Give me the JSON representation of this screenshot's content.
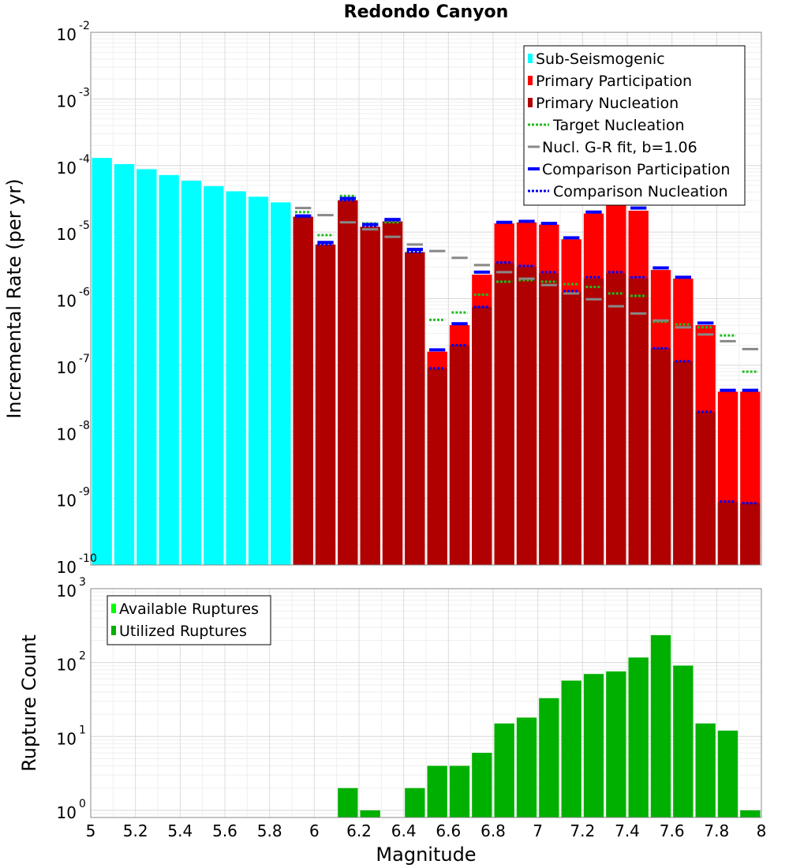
{
  "chart_data": {
    "title": "Redondo Canyon",
    "xlabel": "Magnitude",
    "x_ticks": [
      "5",
      "5.2",
      "5.4",
      "5.6",
      "5.8",
      "6",
      "6.2",
      "6.4",
      "6.6",
      "6.8",
      "7",
      "7.2",
      "7.4",
      "7.6",
      "7.8",
      "8"
    ],
    "xlim": [
      5,
      8
    ],
    "bin_width": 0.1,
    "panels": [
      {
        "type": "bar",
        "scale": "log",
        "ylabel": "Incremental Rate (per yr)",
        "ylim": [
          1e-10,
          0.01
        ],
        "y_ticks": [
          {
            "base": "10",
            "exp": "-10"
          },
          {
            "base": "10",
            "exp": "-9"
          },
          {
            "base": "10",
            "exp": "-8"
          },
          {
            "base": "10",
            "exp": "-7"
          },
          {
            "base": "10",
            "exp": "-6"
          },
          {
            "base": "10",
            "exp": "-5"
          },
          {
            "base": "10",
            "exp": "-4"
          },
          {
            "base": "10",
            "exp": "-3"
          },
          {
            "base": "10",
            "exp": "-2"
          }
        ],
        "legend": [
          {
            "label": "Sub-Seismogenic",
            "style": "bar",
            "color": "#00ffff"
          },
          {
            "label": "Primary Participation",
            "style": "bar",
            "color": "#ff0000"
          },
          {
            "label": "Primary Nucleation",
            "style": "bar",
            "color": "#b00000"
          },
          {
            "label": "Target Nucleation",
            "style": "dotted",
            "color": "#22bb22"
          },
          {
            "label": "Nucl. G-R fit, b=1.06",
            "style": "solid",
            "color": "#888888"
          },
          {
            "label": "Comparison Participation",
            "style": "solid",
            "color": "#0000ff"
          },
          {
            "label": "Comparison Nucleation",
            "style": "dotted",
            "color": "#0000ee"
          }
        ],
        "series": [
          {
            "name": "Sub-Seismogenic",
            "color": "#00ffff",
            "x": [
              5.05,
              5.15,
              5.25,
              5.35,
              5.45,
              5.55,
              5.65,
              5.75,
              5.85
            ],
            "values": [
              0.00013,
              0.000105,
              8.8e-05,
              7.2e-05,
              5.9e-05,
              4.9e-05,
              4.1e-05,
              3.4e-05,
              2.8e-05
            ]
          },
          {
            "name": "Primary Participation",
            "color": "#ff0000",
            "x": [
              5.95,
              6.05,
              6.15,
              6.25,
              6.35,
              6.45,
              6.55,
              6.65,
              6.75,
              6.85,
              6.95,
              7.05,
              7.15,
              7.25,
              7.35,
              7.45,
              7.55,
              7.65,
              7.75,
              7.85,
              7.95
            ],
            "values": [
              1.7e-05,
              6.5e-06,
              3e-05,
              1.2e-05,
              1.45e-05,
              5e-06,
              1.6e-07,
              4e-07,
              2.3e-06,
              1.35e-05,
              1.4e-05,
              1.3e-05,
              7.8e-06,
              1.9e-05,
              2.6e-05,
              2.1e-05,
              2.7e-06,
              2e-06,
              4e-07,
              4e-08,
              4e-08
            ]
          },
          {
            "name": "Primary Nucleation",
            "color": "#b00000",
            "x": [
              5.95,
              6.05,
              6.15,
              6.25,
              6.35,
              6.45,
              6.55,
              6.65,
              6.75,
              6.85,
              6.95,
              7.05,
              7.15,
              7.25,
              7.35,
              7.45,
              7.55,
              7.65,
              7.75,
              7.85,
              7.95
            ],
            "values": [
              1.7e-05,
              6.5e-06,
              3e-05,
              1.2e-05,
              1.45e-05,
              5e-06,
              9e-08,
              2e-07,
              7.5e-07,
              3.4e-06,
              3e-06,
              2.4e-06,
              1.25e-06,
              2e-06,
              2.4e-06,
              2e-06,
              1.8e-07,
              1.15e-07,
              2e-08,
              8.8e-10,
              8.5e-10
            ]
          },
          {
            "name": "Target Nucleation",
            "color": "#22bb22",
            "x": [
              5.95,
              6.05,
              6.15,
              6.25,
              6.35,
              6.45,
              6.55,
              6.65,
              6.75,
              6.85,
              6.95,
              7.05,
              7.15,
              7.25,
              7.35,
              7.45,
              7.55,
              7.65,
              7.75,
              7.85,
              7.95
            ],
            "values": [
              2e-05,
              9e-06,
              3.5e-05,
              1.35e-05,
              1.4e-05,
              5e-06,
              4.8e-07,
              6.2e-07,
              1.15e-06,
              1.8e-06,
              1.9e-06,
              1.8e-06,
              1.65e-06,
              1.5e-06,
              1.2e-06,
              1.1e-06,
              4.5e-07,
              4.1e-07,
              3.7e-07,
              2.8e-07,
              8e-08
            ]
          },
          {
            "name": "Nucl. G-R fit, b=1.06",
            "color": "#888888",
            "x": [
              5.95,
              6.05,
              6.15,
              6.25,
              6.35,
              6.45,
              6.55,
              6.65,
              6.75,
              6.85,
              6.95,
              7.05,
              7.15,
              7.25,
              7.35,
              7.45,
              7.55,
              7.65,
              7.75,
              7.85,
              7.95
            ],
            "values": [
              2.3e-05,
              1.8e-05,
              1.4e-05,
              1.1e-05,
              8.5e-06,
              6.5e-06,
              5.2e-06,
              4.1e-06,
              3.2e-06,
              2.5e-06,
              2e-06,
              1.6e-06,
              1.2e-06,
              9.8e-07,
              7.7e-07,
              6e-07,
              4.7e-07,
              3.7e-07,
              2.9e-07,
              2.3e-07,
              1.75e-07
            ]
          },
          {
            "name": "Comparison Participation",
            "color": "#0000ff",
            "x": [
              5.95,
              6.05,
              6.15,
              6.25,
              6.35,
              6.45,
              6.55,
              6.65,
              6.75,
              6.85,
              6.95,
              7.05,
              7.15,
              7.25,
              7.35,
              7.45,
              7.55,
              7.65,
              7.75,
              7.85,
              7.95
            ],
            "values": [
              1.75e-05,
              7e-06,
              3.2e-05,
              1.3e-05,
              1.55e-05,
              5.5e-06,
              1.7e-07,
              4.2e-07,
              2.5e-06,
              1.4e-05,
              1.45e-05,
              1.35e-05,
              8.2e-06,
              2e-05,
              2.7e-05,
              2.3e-05,
              2.9e-06,
              2.1e-06,
              4.3e-07,
              4.2e-08,
              4.2e-08
            ]
          },
          {
            "name": "Comparison Nucleation",
            "color": "#0000ee",
            "x": [
              5.95,
              6.05,
              6.15,
              6.25,
              6.35,
              6.45,
              6.55,
              6.65,
              6.75,
              6.85,
              6.95,
              7.05,
              7.15,
              7.25,
              7.35,
              7.45,
              7.55,
              7.65,
              7.75,
              7.85,
              7.95
            ],
            "values": [
              1.7e-05,
              6.5e-06,
              3e-05,
              1.25e-05,
              1.5e-05,
              5e-06,
              9e-08,
              2e-07,
              7.5e-07,
              3.5e-06,
              3.1e-06,
              2.5e-06,
              1.3e-06,
              2.1e-06,
              2.5e-06,
              2.1e-06,
              1.8e-07,
              1.15e-07,
              2e-08,
              9e-10,
              8.5e-10
            ]
          }
        ]
      },
      {
        "type": "bar",
        "scale": "log",
        "ylabel": "Rupture Count",
        "ylim": [
          0.8,
          1000
        ],
        "y_ticks": [
          {
            "base": "10",
            "exp": "0"
          },
          {
            "base": "10",
            "exp": "1"
          },
          {
            "base": "10",
            "exp": "2"
          },
          {
            "base": "10",
            "exp": "3"
          }
        ],
        "legend": [
          {
            "label": "Available Ruptures",
            "style": "bar",
            "color": "#00ff00"
          },
          {
            "label": "Utilized Ruptures",
            "style": "bar",
            "color": "#00b000"
          }
        ],
        "series": [
          {
            "name": "Utilized Ruptures",
            "color": "#00b000",
            "x": [
              6.15,
              6.25,
              6.45,
              6.55,
              6.65,
              6.75,
              6.85,
              6.95,
              7.05,
              7.15,
              7.25,
              7.35,
              7.45,
              7.55,
              7.65,
              7.75,
              7.85,
              7.95
            ],
            "values": [
              2,
              1,
              2,
              4,
              4,
              6,
              15,
              18,
              33,
              57,
              70,
              76,
              117,
              235,
              91,
              15,
              12,
              1
            ]
          }
        ]
      }
    ]
  }
}
